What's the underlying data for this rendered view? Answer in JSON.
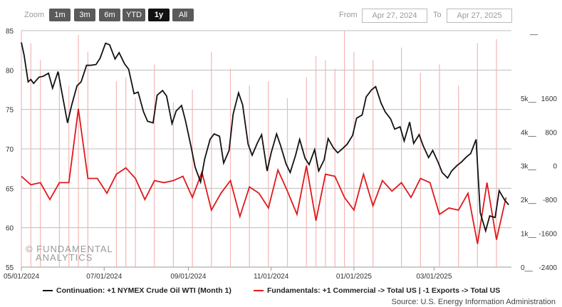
{
  "toolbar": {
    "zoom_label": "Zoom",
    "buttons": [
      "1m",
      "3m",
      "6m",
      "YTD",
      "1y",
      "All"
    ],
    "active": "1y",
    "from_label": "From",
    "from_value": "Apr 27, 2024",
    "to_label": "To",
    "to_value": "Apr 27, 2025"
  },
  "watermark": {
    "line1": "© FUNDAMENTAL",
    "line2": "ANALYTICS"
  },
  "source": "Source: U.S. Energy Information Administration",
  "colors": {
    "price": "#111111",
    "fundamentals": "#e0191b",
    "bars": "#f4b6b6",
    "grid": "#bdbdbd"
  },
  "chart_data": {
    "type": "line",
    "x_range": [
      "2024-05-01",
      "2025-04-27"
    ],
    "x_ticks": [
      "05/01/2024",
      "07/01/2024",
      "09/01/2024",
      "11/01/2024",
      "01/01/2025",
      "03/01/2025"
    ],
    "y_left": {
      "range": [
        55,
        85
      ],
      "ticks": [
        55,
        60,
        65,
        70,
        75,
        80,
        85
      ]
    },
    "y_right_outer": {
      "labels": [
        "0",
        "1k",
        "2k",
        "3k",
        "4k",
        "5k"
      ]
    },
    "y_right_inner": {
      "range": [
        -2400,
        3200
      ],
      "labels": [
        "-2400",
        "-1600",
        "-800",
        "0",
        "800",
        "1600"
      ]
    },
    "legend": [
      "Continuation: +1 NYMEX Crude Oil WTI (Month 1)",
      "Fundamentals: +1 Commercial -> Total US | -1 Exports -> Total US"
    ],
    "series": [
      {
        "name": "Continuation: +1 NYMEX Crude Oil WTI (Month 1)",
        "x": [
          "2024-05-01",
          "2024-05-03",
          "2024-05-06",
          "2024-05-08",
          "2024-05-10",
          "2024-05-14",
          "2024-05-17",
          "2024-05-21",
          "2024-05-24",
          "2024-05-28",
          "2024-05-31",
          "2024-06-04",
          "2024-06-07",
          "2024-06-11",
          "2024-06-14",
          "2024-06-18",
          "2024-06-21",
          "2024-06-25",
          "2024-06-28",
          "2024-07-02",
          "2024-07-05",
          "2024-07-09",
          "2024-07-12",
          "2024-07-16",
          "2024-07-19",
          "2024-07-23",
          "2024-07-26",
          "2024-07-30",
          "2024-08-02",
          "2024-08-06",
          "2024-08-09",
          "2024-08-13",
          "2024-08-16",
          "2024-08-20",
          "2024-08-23",
          "2024-08-27",
          "2024-08-30",
          "2024-09-03",
          "2024-09-06",
          "2024-09-10",
          "2024-09-13",
          "2024-09-17",
          "2024-09-20",
          "2024-09-24",
          "2024-09-27",
          "2024-10-01",
          "2024-10-04",
          "2024-10-08",
          "2024-10-11",
          "2024-10-15",
          "2024-10-18",
          "2024-10-22",
          "2024-10-25",
          "2024-10-29",
          "2024-11-01",
          "2024-11-05",
          "2024-11-08",
          "2024-11-12",
          "2024-11-15",
          "2024-11-19",
          "2024-11-22",
          "2024-11-26",
          "2024-11-29",
          "2024-12-03",
          "2024-12-06",
          "2024-12-10",
          "2024-12-13",
          "2024-12-17",
          "2024-12-20",
          "2024-12-24",
          "2024-12-27",
          "2024-12-31",
          "2025-01-03",
          "2025-01-07",
          "2025-01-10",
          "2025-01-14",
          "2025-01-17",
          "2025-01-21",
          "2025-01-24",
          "2025-01-28",
          "2025-01-31",
          "2025-02-04",
          "2025-02-07",
          "2025-02-11",
          "2025-02-14",
          "2025-02-18",
          "2025-02-21",
          "2025-02-25",
          "2025-02-28",
          "2025-03-04",
          "2025-03-07",
          "2025-03-11",
          "2025-03-14",
          "2025-03-18",
          "2025-03-21",
          "2025-03-25",
          "2025-03-28",
          "2025-04-01",
          "2025-04-04",
          "2025-04-08",
          "2025-04-11",
          "2025-04-15",
          "2025-04-18",
          "2025-04-22",
          "2025-04-25"
        ],
        "values": [
          83.5,
          81.9,
          78.5,
          78.8,
          78.3,
          79.1,
          79.2,
          79.6,
          77.7,
          79.8,
          77.0,
          73.3,
          75.5,
          78.0,
          78.5,
          80.6,
          80.6,
          80.7,
          81.5,
          83.4,
          83.2,
          81.4,
          82.2,
          80.8,
          80.1,
          77.0,
          77.2,
          74.7,
          73.5,
          73.3,
          76.8,
          77.4,
          76.7,
          73.2,
          74.8,
          75.5,
          73.5,
          70.3,
          67.7,
          65.8,
          68.7,
          71.2,
          71.9,
          71.6,
          68.2,
          69.8,
          74.4,
          77.1,
          75.6,
          70.6,
          69.2,
          70.8,
          71.8,
          67.2,
          69.5,
          71.9,
          70.4,
          68.1,
          67.0,
          69.2,
          71.2,
          68.8,
          68.0,
          69.9,
          67.2,
          68.6,
          71.3,
          70.1,
          69.5,
          70.1,
          70.6,
          71.7,
          73.9,
          74.3,
          76.6,
          77.5,
          77.9,
          75.8,
          74.7,
          73.8,
          72.5,
          72.8,
          71.0,
          73.4,
          70.7,
          71.8,
          70.4,
          68.9,
          69.8,
          68.3,
          67.0,
          66.3,
          67.2,
          67.9,
          68.3,
          69.0,
          69.4,
          71.2,
          61.9,
          59.6,
          61.5,
          61.3,
          64.7,
          63.5,
          62.9
        ]
      },
      {
        "name": "Fundamentals: +1 Commercial -> Total US | -1 Exports -> Total US",
        "x": [
          "2024-05-01",
          "2024-05-08",
          "2024-05-15",
          "2024-05-22",
          "2024-05-29",
          "2024-06-05",
          "2024-06-12",
          "2024-06-19",
          "2024-06-26",
          "2024-07-03",
          "2024-07-10",
          "2024-07-17",
          "2024-07-24",
          "2024-07-31",
          "2024-08-07",
          "2024-08-14",
          "2024-08-21",
          "2024-08-28",
          "2024-09-04",
          "2024-09-11",
          "2024-09-18",
          "2024-09-25",
          "2024-10-02",
          "2024-10-09",
          "2024-10-16",
          "2024-10-23",
          "2024-10-30",
          "2024-11-06",
          "2024-11-13",
          "2024-11-20",
          "2024-11-27",
          "2024-12-04",
          "2024-12-11",
          "2024-12-18",
          "2024-12-25",
          "2025-01-01",
          "2025-01-08",
          "2025-01-15",
          "2025-01-22",
          "2025-01-29",
          "2025-02-05",
          "2025-02-12",
          "2025-02-19",
          "2025-02-26",
          "2025-03-05",
          "2025-03-12",
          "2025-03-19",
          "2025-03-26",
          "2025-04-02",
          "2025-04-09",
          "2025-04-16",
          "2025-04-23"
        ],
        "values": [
          -250,
          -450,
          -400,
          -800,
          -400,
          -400,
          1350,
          -300,
          -300,
          -650,
          -200,
          -50,
          -300,
          -800,
          -350,
          -400,
          -350,
          -250,
          -750,
          -150,
          -1050,
          -650,
          -350,
          -1200,
          -500,
          -650,
          -1000,
          -100,
          -600,
          -1150,
          0,
          -1300,
          -200,
          -250,
          -750,
          -1050,
          -200,
          -950,
          -350,
          -600,
          -400,
          -750,
          -300,
          -400,
          -1150,
          -1000,
          -1050,
          -650,
          -1850,
          -400,
          -1750,
          -750
        ]
      },
      {
        "name": "",
        "type": "bar",
        "x": [
          "2024-05-01",
          "2024-05-08",
          "2024-05-15",
          "2024-05-29",
          "2024-06-05",
          "2024-06-12",
          "2024-06-19",
          "2024-07-10",
          "2024-07-17",
          "2024-07-24",
          "2024-08-07",
          "2024-08-21",
          "2024-09-04",
          "2024-09-18",
          "2024-10-02",
          "2024-10-16",
          "2024-10-30",
          "2024-11-13",
          "2024-11-27",
          "2024-12-04",
          "2024-12-11",
          "2024-12-18",
          "2024-12-25",
          "2025-01-01",
          "2025-01-15",
          "2025-02-05",
          "2025-02-19",
          "2025-03-05",
          "2025-03-19",
          "2025-04-02",
          "2025-04-16"
        ],
        "values": [
          3200,
          2900,
          2500,
          2200,
          1900,
          3100,
          2700,
          2000,
          2100,
          1600,
          2400,
          1500,
          1800,
          2700,
          2300,
          1900,
          2000,
          1600,
          2100,
          2600,
          2500,
          2300,
          3200,
          2700,
          2500,
          2800,
          2200,
          2400,
          1900,
          2900,
          3000
        ]
      }
    ]
  }
}
